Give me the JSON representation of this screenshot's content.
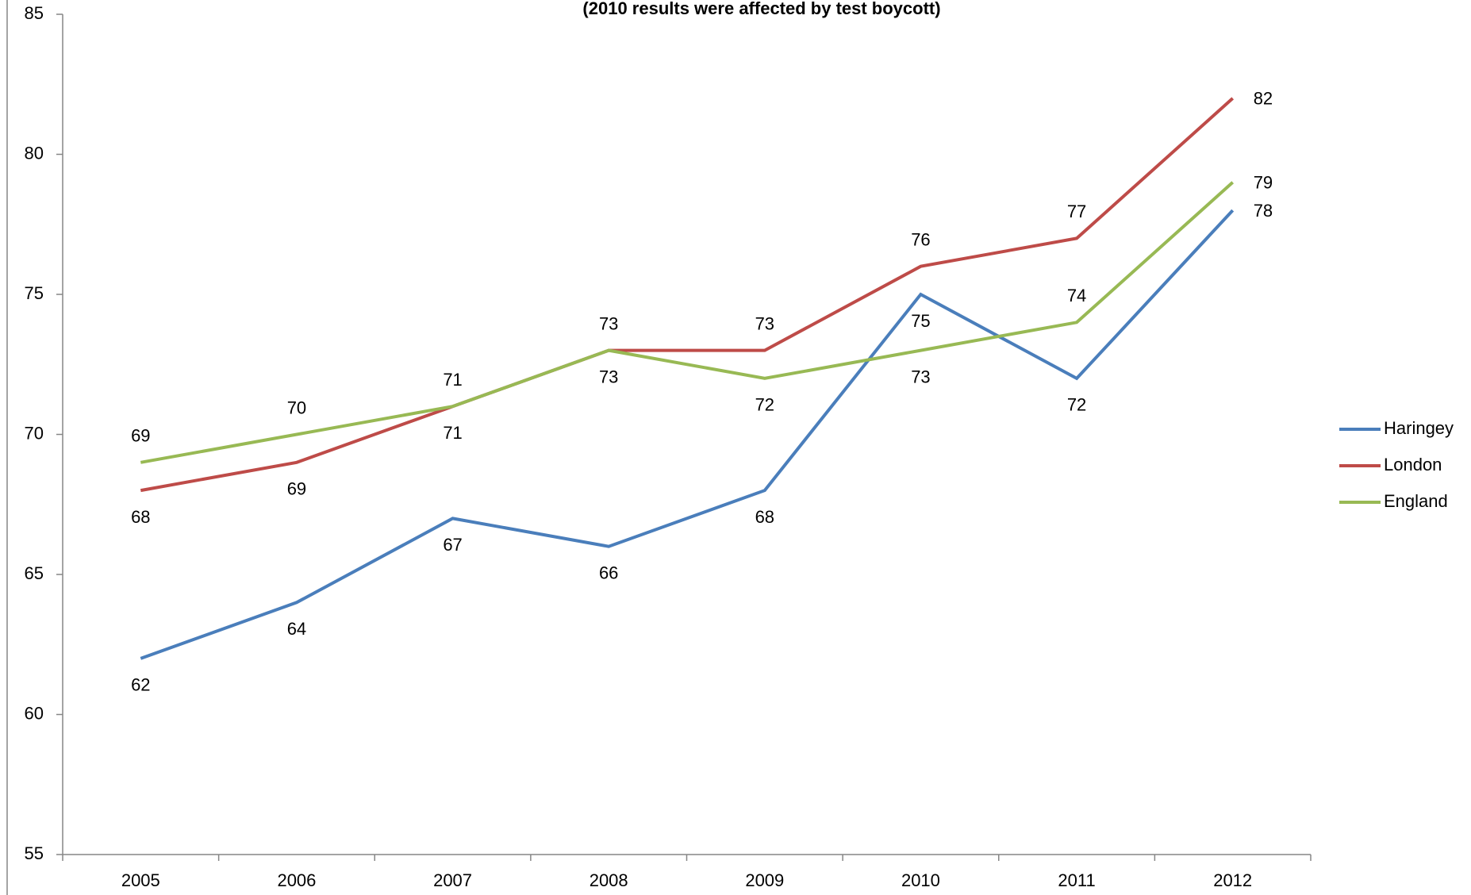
{
  "chart_data": {
    "type": "line",
    "subtitle": "(2010 results were affected by test boycott)",
    "categories": [
      "2005",
      "2006",
      "2007",
      "2008",
      "2009",
      "2010",
      "2011",
      "2012"
    ],
    "series": [
      {
        "name": "Haringey",
        "color": "#4a7ebb",
        "values": [
          62,
          64,
          67,
          66,
          68,
          75,
          72,
          78
        ]
      },
      {
        "name": "London",
        "color": "#be4b48",
        "values": [
          68,
          69,
          71,
          73,
          73,
          76,
          77,
          82
        ]
      },
      {
        "name": "England",
        "color": "#98b954",
        "values": [
          69,
          70,
          71,
          73,
          72,
          73,
          74,
          79
        ]
      }
    ],
    "ylim": [
      55,
      85
    ],
    "yticks": [
      55,
      60,
      65,
      70,
      75,
      80,
      85
    ],
    "grid": false,
    "legend": "right",
    "data_labels": true
  }
}
